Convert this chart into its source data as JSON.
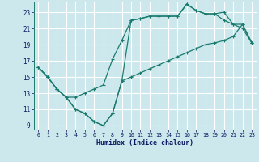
{
  "xlabel": "Humidex (Indice chaleur)",
  "bg_color": "#cce8ed",
  "grid_color": "#ffffff",
  "line_color": "#1a7a6e",
  "xlim": [
    -0.5,
    23.5
  ],
  "ylim": [
    8.5,
    24.3
  ],
  "xticks": [
    0,
    1,
    2,
    3,
    4,
    5,
    6,
    7,
    8,
    9,
    10,
    11,
    12,
    13,
    14,
    15,
    16,
    17,
    18,
    19,
    20,
    21,
    22,
    23
  ],
  "yticks": [
    9,
    11,
    13,
    15,
    17,
    19,
    21,
    23
  ],
  "curve1_x": [
    0,
    1,
    2,
    3,
    4,
    5,
    6,
    7,
    8,
    9,
    10,
    11,
    12,
    13,
    14,
    15,
    16,
    17,
    18,
    19,
    20,
    21,
    22,
    23
  ],
  "curve1_y": [
    16.2,
    15.0,
    13.5,
    12.5,
    11.0,
    10.5,
    9.5,
    9.0,
    10.5,
    14.5,
    22.0,
    22.2,
    22.5,
    22.5,
    22.5,
    22.5,
    24.0,
    23.2,
    22.8,
    22.8,
    23.0,
    21.5,
    21.5,
    19.2
  ],
  "curve2_x": [
    0,
    1,
    2,
    3,
    4,
    5,
    6,
    7,
    8,
    9,
    10,
    11,
    12,
    13,
    14,
    15,
    16,
    17,
    18,
    19,
    20,
    21,
    22,
    23
  ],
  "curve2_y": [
    16.2,
    15.0,
    13.5,
    12.5,
    11.0,
    10.5,
    9.5,
    9.0,
    10.5,
    14.5,
    15.0,
    15.5,
    16.0,
    16.5,
    17.0,
    17.5,
    18.0,
    18.5,
    19.0,
    19.2,
    19.5,
    20.0,
    21.5,
    19.2
  ],
  "curve3_x": [
    0,
    1,
    2,
    3,
    4,
    5,
    6,
    7,
    8,
    9,
    10,
    11,
    12,
    13,
    14,
    15,
    16,
    17,
    18,
    19,
    20,
    21,
    22,
    23
  ],
  "curve3_y": [
    16.2,
    15.0,
    13.5,
    12.5,
    12.5,
    13.0,
    13.5,
    14.0,
    17.2,
    19.5,
    22.0,
    22.2,
    22.5,
    22.5,
    22.5,
    22.5,
    24.0,
    23.2,
    22.8,
    22.8,
    22.0,
    21.5,
    21.0,
    19.2
  ]
}
